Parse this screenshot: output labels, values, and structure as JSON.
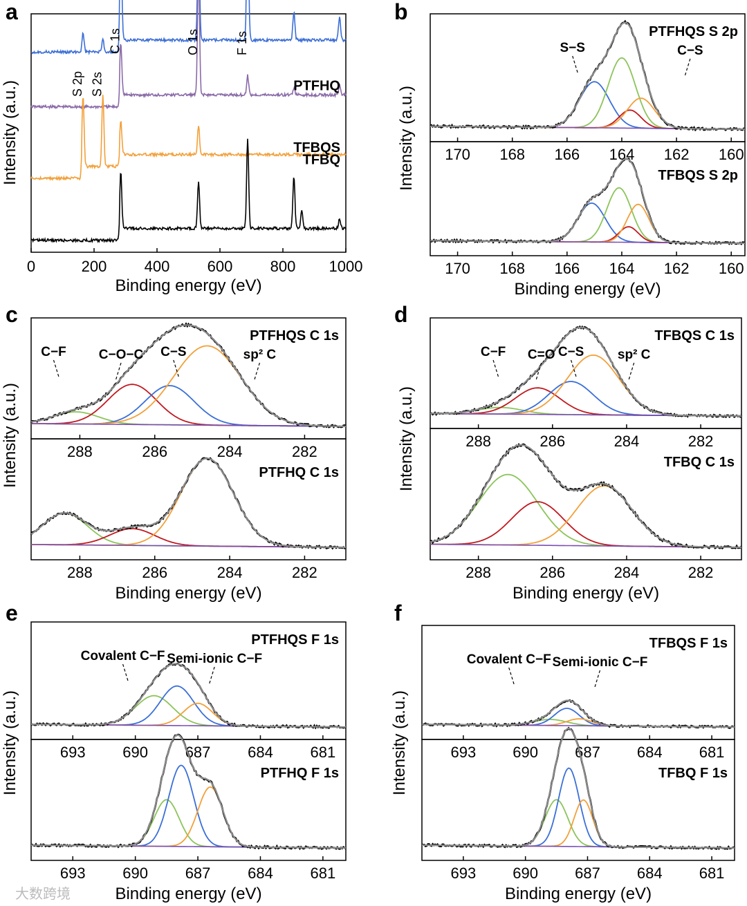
{
  "watermark": "大数跨境",
  "colors": {
    "envelope": "#8c8c8c",
    "raw": "#000000",
    "blue": "#3a6fd8",
    "green": "#8cc45a",
    "red": "#c0191f",
    "orange": "#f2a03a",
    "purple": "#7a4fb3",
    "survey_ptfhqs": "#3b6ed6",
    "survey_ptfhq": "#8a6aa8",
    "survey_tfbqs": "#f2a03a",
    "survey_tfbq": "#000000"
  },
  "chart_data": [
    {
      "id": "a",
      "type": "line",
      "panel_letter": "a",
      "xlabel": "Binding energy (eV)",
      "ylabel": "Intensity (a.u.)",
      "xlim": [
        0,
        1000
      ],
      "xticks": [
        0,
        200,
        400,
        600,
        800,
        1000
      ],
      "series": [
        {
          "name": "PTFHQS",
          "color": "survey_ptfhqs",
          "baseline": 0.16,
          "peaks": [
            [
              165,
              0.08
            ],
            [
              228,
              0.05
            ],
            [
              285,
              0.46
            ],
            [
              532,
              0.44
            ],
            [
              688,
              0.52
            ],
            [
              835,
              0.12
            ],
            [
              980,
              0.1
            ]
          ]
        },
        {
          "name": "PTFHQ",
          "color": "survey_ptfhq",
          "baseline": 0.39,
          "peaks": [
            [
              285,
              0.22
            ],
            [
              532,
              0.52
            ],
            [
              688,
              0.08
            ],
            [
              835,
              0.03
            ],
            [
              980,
              0.04
            ]
          ]
        },
        {
          "name": "TFBQS",
          "color": "survey_tfbqs",
          "baseline": 0.69,
          "peaks": [
            [
              165,
              0.3
            ],
            [
              228,
              0.3
            ],
            [
              285,
              0.14
            ],
            [
              532,
              0.12
            ]
          ]
        },
        {
          "name": "TFBQ",
          "color": "survey_tfbq",
          "baseline": 0.95,
          "peaks": [
            [
              285,
              0.24
            ],
            [
              532,
              0.2
            ],
            [
              688,
              0.38
            ],
            [
              835,
              0.22
            ],
            [
              860,
              0.08
            ],
            [
              980,
              0.04
            ]
          ]
        }
      ],
      "annotations": [
        {
          "text": "S 2p",
          "x": 165
        },
        {
          "text": "S 2s",
          "x": 228
        },
        {
          "text": "C 1s",
          "x": 285
        },
        {
          "text": "O 1s",
          "x": 532
        },
        {
          "text": "F 1s",
          "x": 688
        }
      ]
    },
    {
      "id": "b",
      "type": "line",
      "panel_letter": "b",
      "xlabel": "Binding energy (eV)",
      "ylabel": "Intensity (a.u.)",
      "xlim": [
        171,
        159.5
      ],
      "xticks": [
        170,
        168,
        166,
        164,
        162,
        160
      ],
      "subplots": [
        {
          "title": "PTFHQS S 2p",
          "components": [
            {
              "color": "blue",
              "center": 165.0,
              "height": 0.46,
              "width": 0.55
            },
            {
              "color": "green",
              "center": 164.0,
              "height": 0.7,
              "width": 0.5
            },
            {
              "color": "red",
              "center": 163.7,
              "height": 0.18,
              "width": 0.4
            },
            {
              "color": "orange",
              "center": 163.3,
              "height": 0.3,
              "width": 0.5
            }
          ],
          "annotations": [
            {
              "text": "S−S",
              "x": 165.8
            },
            {
              "text": "C−S",
              "x": 161.5
            }
          ]
        },
        {
          "title": "TFBQS S 2p",
          "components": [
            {
              "color": "blue",
              "center": 165.1,
              "height": 0.45,
              "width": 0.5
            },
            {
              "color": "green",
              "center": 164.1,
              "height": 0.63,
              "width": 0.45
            },
            {
              "color": "red",
              "center": 163.75,
              "height": 0.18,
              "width": 0.35
            },
            {
              "color": "orange",
              "center": 163.4,
              "height": 0.44,
              "width": 0.4
            }
          ],
          "annotations": []
        }
      ]
    },
    {
      "id": "c",
      "type": "line",
      "panel_letter": "c",
      "xlabel": "Binding energy (eV)",
      "ylabel": "Intensity (a.u.)",
      "xlim": [
        289.3,
        280.9
      ],
      "xticks": [
        288,
        286,
        284,
        282
      ],
      "subplots": [
        {
          "title": "PTFHQS C 1s",
          "components": [
            {
              "color": "green",
              "center": 288.1,
              "height": 0.13,
              "width": 0.6
            },
            {
              "color": "red",
              "center": 286.6,
              "height": 0.43,
              "width": 0.65
            },
            {
              "color": "blue",
              "center": 285.6,
              "height": 0.42,
              "width": 0.65
            },
            {
              "color": "orange",
              "center": 284.6,
              "height": 0.85,
              "width": 0.9
            }
          ],
          "annotations": [
            {
              "text": "C−F",
              "x": 288.7
            },
            {
              "text": "C−O−C",
              "x": 286.9
            },
            {
              "text": "C−S",
              "x": 285.5
            },
            {
              "text": "sp² C",
              "x": 283.2
            }
          ]
        },
        {
          "title": "PTFHQ C 1s",
          "components": [
            {
              "color": "green",
              "center": 288.4,
              "height": 0.34,
              "width": 0.6
            },
            {
              "color": "red",
              "center": 286.6,
              "height": 0.18,
              "width": 0.6
            },
            {
              "color": "orange",
              "center": 284.6,
              "height": 0.94,
              "width": 0.7
            }
          ],
          "annotations": []
        }
      ]
    },
    {
      "id": "d",
      "type": "line",
      "panel_letter": "d",
      "xlabel": "Binding energy (eV)",
      "ylabel": "Intensity (a.u.)",
      "xlim": [
        289.3,
        280.9
      ],
      "xticks": [
        288,
        286,
        284,
        282
      ],
      "subplots": [
        {
          "title": "TFBQS C 1s",
          "components": [
            {
              "color": "green",
              "center": 287.4,
              "height": 0.08,
              "width": 0.6
            },
            {
              "color": "red",
              "center": 286.4,
              "height": 0.32,
              "width": 0.6
            },
            {
              "color": "blue",
              "center": 285.5,
              "height": 0.4,
              "width": 0.6
            },
            {
              "color": "orange",
              "center": 284.9,
              "height": 0.72,
              "width": 0.7
            }
          ],
          "annotations": [
            {
              "text": "C−F",
              "x": 287.6
            },
            {
              "text": "C=O",
              "x": 286.3
            },
            {
              "text": "C−S",
              "x": 285.5
            },
            {
              "text": "sp² C",
              "x": 283.8
            }
          ]
        },
        {
          "title": "TFBQ C 1s",
          "components": [
            {
              "color": "green",
              "center": 287.2,
              "height": 0.68,
              "width": 0.8
            },
            {
              "color": "red",
              "center": 286.4,
              "height": 0.42,
              "width": 0.7
            },
            {
              "color": "orange",
              "center": 284.6,
              "height": 0.58,
              "width": 0.75
            }
          ],
          "annotations": []
        }
      ]
    },
    {
      "id": "e",
      "type": "line",
      "panel_letter": "e",
      "xlabel": "Binding energy (eV)",
      "ylabel": "Intensity (a.u.)",
      "xlim": [
        695,
        679.9
      ],
      "xticks": [
        693,
        690,
        687,
        684,
        681
      ],
      "subplots": [
        {
          "title": "PTFHQS F 1s",
          "components": [
            {
              "color": "green",
              "center": 689.1,
              "height": 0.33,
              "width": 0.9
            },
            {
              "color": "blue",
              "center": 688.0,
              "height": 0.44,
              "width": 0.8
            },
            {
              "color": "orange",
              "center": 687.0,
              "height": 0.25,
              "width": 0.7
            }
          ],
          "annotations": [
            {
              "text": "Covalent C−F",
              "x": 690.6
            },
            {
              "text": "Semi-ionic C−F",
              "x": 686.2
            }
          ]
        },
        {
          "title": "PTFHQ F 1s",
          "components": [
            {
              "color": "green",
              "center": 688.5,
              "height": 0.5,
              "width": 0.6
            },
            {
              "color": "blue",
              "center": 687.8,
              "height": 0.87,
              "width": 0.6
            },
            {
              "color": "orange",
              "center": 686.4,
              "height": 0.64,
              "width": 0.6
            }
          ],
          "annotations": []
        }
      ]
    },
    {
      "id": "f",
      "type": "line",
      "panel_letter": "f",
      "xlabel": "Binding energy (eV)",
      "ylabel": "Intensity (a.u.)",
      "xlim": [
        695,
        679.9
      ],
      "xticks": [
        693,
        690,
        687,
        684,
        681
      ],
      "subplots": [
        {
          "title": "TFBQS F 1s",
          "components": [
            {
              "color": "green",
              "center": 688.8,
              "height": 0.07,
              "width": 0.8
            },
            {
              "color": "blue",
              "center": 688.0,
              "height": 0.2,
              "width": 0.6
            },
            {
              "color": "orange",
              "center": 687.4,
              "height": 0.08,
              "width": 0.6
            }
          ],
          "annotations": [
            {
              "text": "Covalent C−F",
              "x": 690.8
            },
            {
              "text": "Semi-ionic C−F",
              "x": 686.4
            }
          ]
        },
        {
          "title": "TFBQ F 1s",
          "components": [
            {
              "color": "green",
              "center": 688.5,
              "height": 0.5,
              "width": 0.55
            },
            {
              "color": "blue",
              "center": 687.9,
              "height": 0.84,
              "width": 0.5
            },
            {
              "color": "orange",
              "center": 687.2,
              "height": 0.5,
              "width": 0.45
            }
          ],
          "annotations": []
        }
      ]
    }
  ]
}
